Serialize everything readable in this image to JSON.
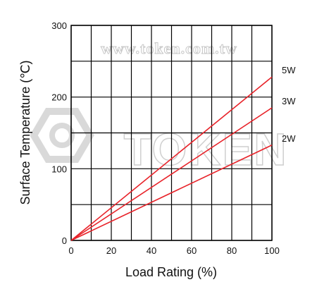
{
  "chart_data": {
    "type": "line",
    "xlabel": "Load Rating (%)",
    "ylabel": "Surface Temperature (℃)",
    "xlim": [
      0,
      100
    ],
    "ylim": [
      0,
      300
    ],
    "x_ticks": [
      "0",
      "20",
      "40",
      "60",
      "80",
      "100"
    ],
    "y_ticks": [
      "0",
      "100",
      "200",
      "300"
    ],
    "grid": true,
    "series": [
      {
        "name": "5W",
        "x": [
          0,
          100
        ],
        "y": [
          0,
          228
        ],
        "color": "#e8232a"
      },
      {
        "name": "3W",
        "x": [
          0,
          100
        ],
        "y": [
          0,
          185
        ],
        "color": "#e8232a"
      },
      {
        "name": "2W",
        "x": [
          0,
          100
        ],
        "y": [
          0,
          133
        ],
        "color": "#e8232a"
      }
    ]
  },
  "watermark": {
    "url": "www.token.com.tw",
    "brand": "TOKEN"
  }
}
